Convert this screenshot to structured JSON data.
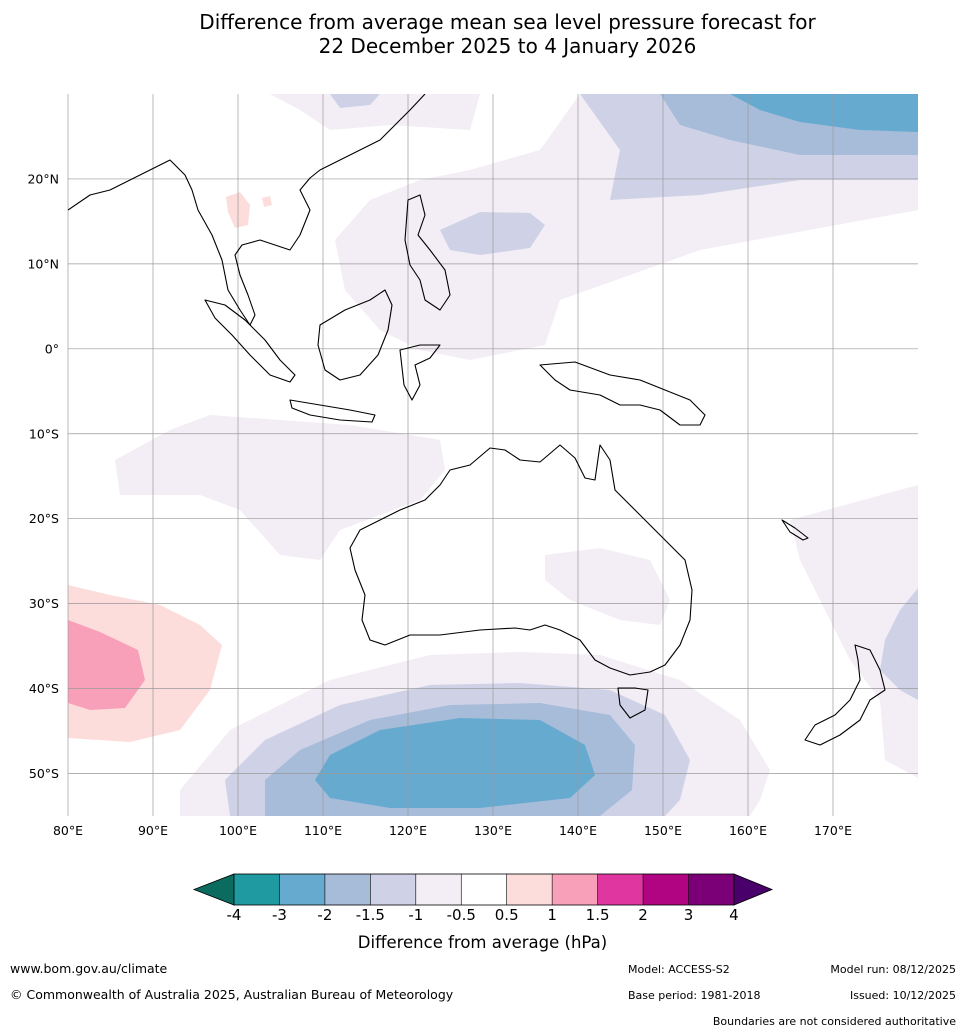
{
  "title": {
    "line1": "Difference from average mean sea level pressure forecast for",
    "line2": "22 December 2025 to 4 January 2026"
  },
  "map": {
    "lat_labels": [
      "20°N",
      "10°N",
      "0°",
      "10°S",
      "20°S",
      "30°S",
      "40°S",
      "50°S"
    ],
    "lon_labels": [
      "80°E",
      "90°E",
      "100°E",
      "110°E",
      "120°E",
      "130°E",
      "140°E",
      "150°E",
      "160°E",
      "170°E"
    ],
    "lat_values": [
      20,
      10,
      0,
      -10,
      -20,
      -30,
      -40,
      -50
    ],
    "lon_values": [
      80,
      90,
      100,
      110,
      120,
      130,
      140,
      150,
      160,
      170
    ],
    "extent": {
      "lon_min": 80,
      "lon_max": 180,
      "lat_min": -55,
      "lat_max": 30
    }
  },
  "colorbar": {
    "title": "Difference from average (hPa)",
    "tick_labels": [
      "-4",
      "-3",
      "-2",
      "-1.5",
      "-1",
      "-0.5",
      "0.5",
      "1",
      "1.5",
      "2",
      "3",
      "4"
    ],
    "colors": {
      "below_min": "#0b6b5e",
      "m4_m3": "#1f9aa0",
      "m3_m2": "#67aad0",
      "m2_m15": "#a6bcd9",
      "m15_m1": "#cfd2e6",
      "m1_m05": "#f3edf5",
      "m05_05": "#ffffff",
      "p05_1": "#fddcdc",
      "p1_15": "#f8a0b9",
      "p15_2": "#df36a0",
      "p2_3": "#b00482",
      "p3_4": "#7b0077",
      "above_max": "#4a006a"
    }
  },
  "footer": {
    "website": "www.bom.gov.au/climate",
    "copyright": "© Commonwealth of Australia 2025, Australian Bureau of Meteorology",
    "model": "Model: ACCESS-S2",
    "base_period": "Base period: 1981-2018",
    "model_run": "Model run: 08/12/2025",
    "issued": "Issued: 10/12/2025",
    "disclaimer": "Boundaries are not considered authoritative"
  }
}
